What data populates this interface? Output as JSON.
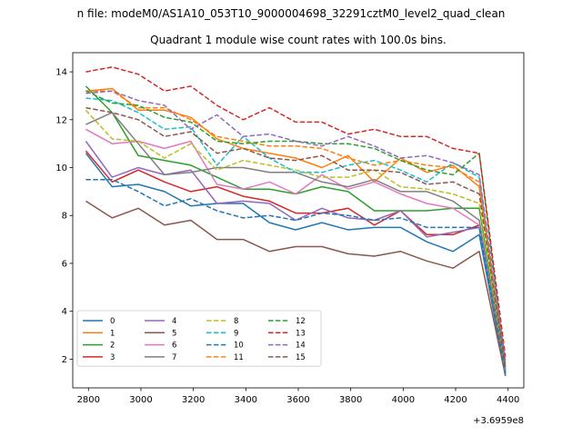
{
  "chart_data": {
    "type": "line",
    "suptitle": "n file: modeM0/AS1A10_053T10_9000004698_32291cztM0_level2_quad_clean",
    "title": "Quadrant 1 module wise count rates with 100.0s bins.",
    "xlabel": "",
    "ylabel": "",
    "offset_label": "+3.6959e8",
    "xlim": [
      2740,
      4460
    ],
    "ylim": [
      0.8,
      14.8
    ],
    "xticks": [
      2800,
      3000,
      3200,
      3400,
      3600,
      3800,
      4000,
      4200,
      4400
    ],
    "yticks": [
      2,
      4,
      6,
      8,
      10,
      12,
      14
    ],
    "grid": false,
    "legend": {
      "position": "lower-left",
      "columns": 4
    },
    "x": [
      2790,
      2890,
      2990,
      3090,
      3190,
      3290,
      3390,
      3490,
      3590,
      3690,
      3790,
      3890,
      3990,
      4090,
      4190,
      4290,
      4390
    ],
    "series": [
      {
        "name": "0",
        "color": "#1f77b4",
        "dash": "solid",
        "values": [
          10.6,
          9.2,
          9.3,
          9.0,
          8.4,
          8.5,
          8.5,
          7.7,
          7.4,
          7.7,
          7.4,
          7.5,
          7.5,
          6.9,
          6.5,
          7.2,
          1.3
        ]
      },
      {
        "name": "1",
        "color": "#ff7f0e",
        "dash": "solid",
        "values": [
          13.2,
          13.3,
          12.4,
          12.4,
          12.1,
          11.2,
          10.8,
          10.6,
          10.4,
          10.0,
          10.5,
          9.4,
          10.4,
          9.8,
          10.1,
          9.2,
          1.6
        ]
      },
      {
        "name": "2",
        "color": "#2ca02c",
        "dash": "solid",
        "values": [
          13.4,
          12.3,
          10.5,
          10.3,
          10.1,
          9.6,
          9.1,
          9.1,
          8.9,
          9.2,
          9.0,
          8.2,
          8.2,
          8.2,
          8.3,
          8.3,
          1.5
        ]
      },
      {
        "name": "3",
        "color": "#d62728",
        "dash": "solid",
        "values": [
          10.7,
          9.4,
          9.9,
          9.4,
          9.0,
          9.2,
          8.8,
          8.6,
          8.1,
          8.1,
          8.3,
          7.6,
          8.2,
          7.2,
          7.2,
          7.6,
          1.4
        ]
      },
      {
        "name": "4",
        "color": "#9467bd",
        "dash": "solid",
        "values": [
          11.1,
          9.6,
          10.0,
          9.7,
          9.9,
          8.5,
          8.6,
          8.5,
          7.8,
          8.3,
          7.9,
          7.8,
          8.2,
          7.1,
          7.3,
          7.5,
          1.4
        ]
      },
      {
        "name": "5",
        "color": "#8c564b",
        "dash": "solid",
        "values": [
          8.6,
          7.9,
          8.3,
          7.6,
          7.8,
          7.0,
          7.0,
          6.5,
          6.7,
          6.7,
          6.4,
          6.3,
          6.5,
          6.1,
          5.8,
          6.5,
          1.3
        ]
      },
      {
        "name": "6",
        "color": "#e377c2",
        "dash": "solid",
        "values": [
          11.6,
          11.0,
          11.1,
          10.8,
          11.1,
          9.3,
          9.1,
          9.4,
          8.9,
          9.7,
          9.1,
          9.4,
          8.9,
          8.5,
          8.3,
          7.6,
          1.4
        ]
      },
      {
        "name": "7",
        "color": "#7f7f7f",
        "dash": "solid",
        "values": [
          11.8,
          12.3,
          11.0,
          9.7,
          9.8,
          10.0,
          10.0,
          9.8,
          9.8,
          9.4,
          9.2,
          9.5,
          9.0,
          9.0,
          8.6,
          7.8,
          1.4
        ]
      },
      {
        "name": "8",
        "color": "#bcbd22",
        "dash": "dashed",
        "values": [
          12.4,
          11.2,
          11.1,
          10.4,
          11.0,
          9.9,
          10.3,
          10.1,
          9.9,
          9.6,
          9.6,
          9.9,
          9.2,
          9.1,
          8.9,
          8.5,
          1.5
        ]
      },
      {
        "name": "9",
        "color": "#17becf",
        "dash": "dashed",
        "values": [
          12.9,
          12.8,
          12.3,
          11.6,
          11.7,
          10.1,
          11.3,
          10.4,
          9.8,
          9.8,
          10.1,
          10.3,
          9.9,
          9.4,
          10.2,
          9.6,
          1.5
        ]
      },
      {
        "name": "10",
        "color": "#1f77b4",
        "dash": "dashed",
        "values": [
          9.5,
          9.5,
          9.0,
          8.4,
          8.7,
          8.2,
          7.9,
          8.0,
          7.8,
          8.1,
          8.0,
          7.8,
          7.9,
          7.5,
          7.5,
          7.5,
          1.4
        ]
      },
      {
        "name": "11",
        "color": "#ff7f0e",
        "dash": "dashed",
        "values": [
          13.2,
          13.2,
          12.5,
          12.5,
          12.0,
          11.3,
          11.1,
          10.9,
          10.9,
          10.8,
          10.4,
          10.1,
          10.3,
          10.1,
          10.0,
          9.4,
          1.8
        ]
      },
      {
        "name": "12",
        "color": "#2ca02c",
        "dash": "dashed",
        "values": [
          13.2,
          12.7,
          12.6,
          12.1,
          11.9,
          11.1,
          11.0,
          11.1,
          11.1,
          11.0,
          11.0,
          10.8,
          10.3,
          9.9,
          9.7,
          10.6,
          1.7
        ]
      },
      {
        "name": "13",
        "color": "#d62728",
        "dash": "dashed",
        "values": [
          14.0,
          14.2,
          13.9,
          13.2,
          13.4,
          12.6,
          12.0,
          12.5,
          11.9,
          11.9,
          11.4,
          11.6,
          11.3,
          11.3,
          10.8,
          10.6,
          2.1
        ]
      },
      {
        "name": "14",
        "color": "#9467bd",
        "dash": "dashed",
        "values": [
          13.1,
          13.2,
          12.8,
          12.6,
          11.6,
          12.2,
          11.3,
          11.4,
          11.1,
          10.9,
          11.3,
          10.9,
          10.4,
          10.5,
          10.2,
          9.7,
          1.9
        ]
      },
      {
        "name": "15",
        "color": "#8c564b",
        "dash": "dashed",
        "values": [
          12.5,
          12.3,
          12.0,
          11.3,
          11.5,
          10.6,
          10.8,
          10.4,
          10.3,
          10.5,
          9.9,
          9.9,
          9.8,
          9.3,
          9.4,
          8.9,
          1.6
        ]
      }
    ]
  }
}
